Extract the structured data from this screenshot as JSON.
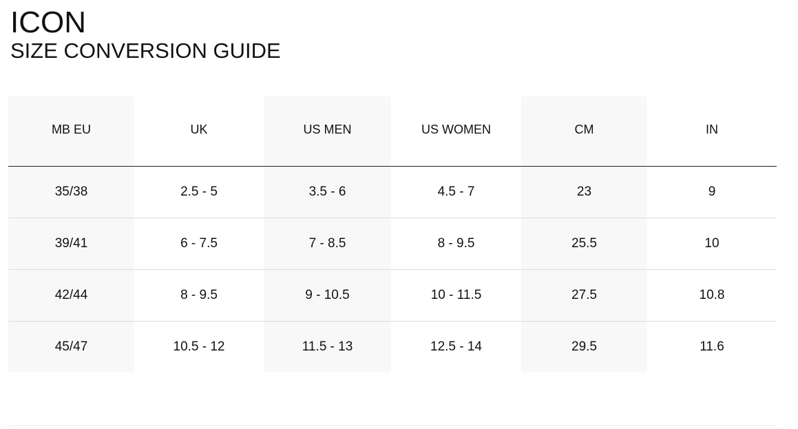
{
  "brand": "ICON",
  "subtitle": "SIZE CONVERSION GUIDE",
  "table": {
    "headers": [
      "MB EU",
      "UK",
      "US MEN",
      "US WOMEN",
      "CM",
      "IN"
    ],
    "rows": [
      [
        "35/38",
        "2.5 - 5",
        "3.5 - 6",
        "4.5 - 7",
        "23",
        "9"
      ],
      [
        "39/41",
        "6 - 7.5",
        "7 - 8.5",
        "8 - 9.5",
        "25.5",
        "10"
      ],
      [
        "42/44",
        "8 - 9.5",
        "9 - 10.5",
        "10 - 11.5",
        "27.5",
        "10.8"
      ],
      [
        "45/47",
        "10.5 - 12",
        "11.5 - 13",
        "12.5 - 14",
        "29.5",
        "11.6"
      ]
    ]
  }
}
